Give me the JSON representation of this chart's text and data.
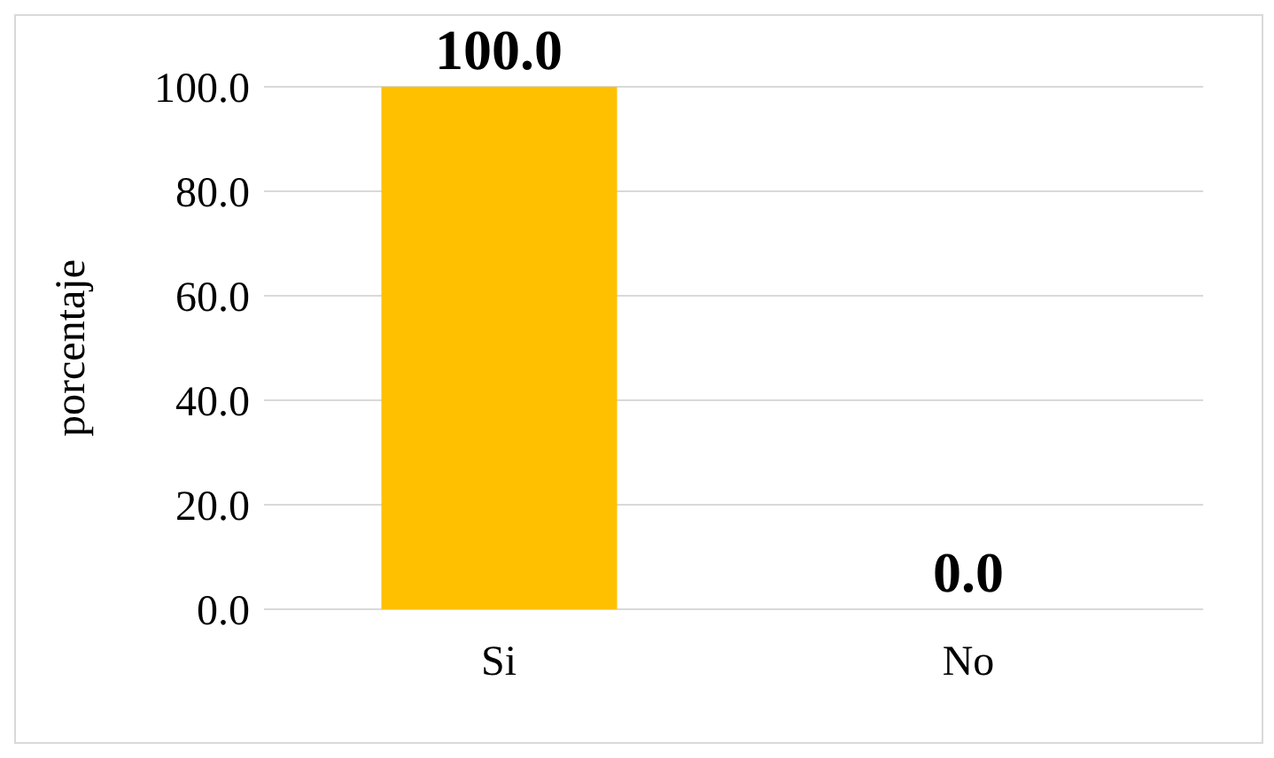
{
  "chart_data": {
    "type": "bar",
    "ylabel": "porcentaje",
    "categories": [
      "Si",
      "No"
    ],
    "values": [
      100,
      0
    ],
    "colors": [
      "#ffc000",
      "#70ad47"
    ],
    "value_labels": [
      "100.0",
      "0.0"
    ],
    "ylim": [
      0,
      100
    ],
    "yticks": [
      {
        "value": 0,
        "label": "0.0"
      },
      {
        "value": 20,
        "label": "20.0"
      },
      {
        "value": 40,
        "label": "40.0"
      },
      {
        "value": 60,
        "label": "60.0"
      },
      {
        "value": 80,
        "label": "80.0"
      },
      {
        "value": 100,
        "label": "100.0"
      }
    ],
    "grid": "y"
  }
}
